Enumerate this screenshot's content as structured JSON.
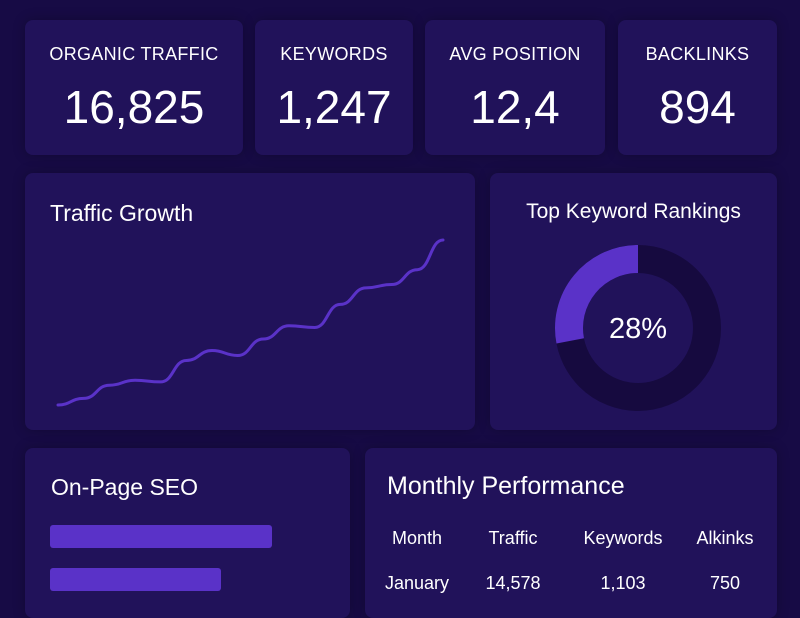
{
  "stats": [
    {
      "label": "ORGANIC TRAFFIC",
      "value": "16,825"
    },
    {
      "label": "KEYWORDS",
      "value": "1,247"
    },
    {
      "label": "AVG POSITION",
      "value": "12,4"
    },
    {
      "label": "BACKLINKS",
      "value": "894"
    }
  ],
  "traffic_growth": {
    "type": "line",
    "title": "Traffic Growth",
    "values": [
      0,
      4,
      12,
      15,
      14,
      27,
      33,
      30,
      40,
      48,
      47,
      61,
      71,
      73,
      82,
      100
    ],
    "color": "#5a32c8"
  },
  "keyword_rankings": {
    "type": "pie",
    "title": "Top Keyword Rankings",
    "value": 28,
    "value_label": "28%",
    "color": "#5a32c8"
  },
  "on_page_seo": {
    "type": "bar",
    "title": "On-Page SEO",
    "values": [
      74,
      57
    ],
    "color": "#5a32c8"
  },
  "monthly_performance": {
    "title": "Monthly Performance",
    "columns": [
      "Month",
      "Traffic",
      "Keywords",
      "Alkinks"
    ],
    "rows": [
      [
        "January",
        "14,578",
        "1,103",
        "750"
      ]
    ]
  }
}
